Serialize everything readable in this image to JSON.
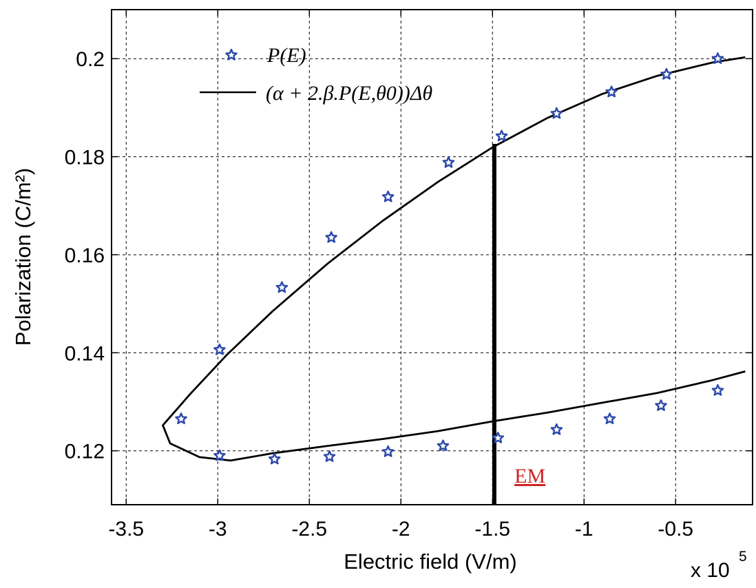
{
  "chart_data": {
    "type": "scatter",
    "xlabel": "Electric field (V/m)",
    "ylabel": "Polarization (C/m²)",
    "x_multiplier_label": "x 10",
    "x_multiplier_exponent": "5",
    "xlim": [
      -3.58,
      -0.08
    ],
    "ylim": [
      0.109,
      0.21
    ],
    "x_ticks": [
      -3.5,
      -3,
      -2.5,
      -2,
      -1.5,
      -1,
      -0.5
    ],
    "x_tick_labels": [
      "-3.5",
      "-3",
      "-2.5",
      "-2",
      "-1.5",
      "-1",
      "-0.5"
    ],
    "y_ticks": [
      0.12,
      0.14,
      0.16,
      0.18,
      0.2
    ],
    "y_tick_labels": [
      "0.12",
      "0.14",
      "0.16",
      "0.18",
      "0.2"
    ],
    "grid": true,
    "legend_position": "top-left",
    "series": [
      {
        "name": "P(E)",
        "style": "markers",
        "marker": "star",
        "color": "#2b48a8",
        "points": [
          [
            -0.27,
            0.2
          ],
          [
            -0.55,
            0.1968
          ],
          [
            -0.85,
            0.1932
          ],
          [
            -1.15,
            0.1888
          ],
          [
            -1.45,
            0.1842
          ],
          [
            -1.74,
            0.1788
          ],
          [
            -2.07,
            0.1718
          ],
          [
            -2.38,
            0.1635
          ],
          [
            -2.65,
            0.1533
          ],
          [
            -2.99,
            0.1406
          ],
          [
            -3.2,
            0.1265
          ],
          [
            -2.99,
            0.119
          ],
          [
            -2.69,
            0.1183
          ],
          [
            -2.39,
            0.1188
          ],
          [
            -2.07,
            0.1198
          ],
          [
            -1.77,
            0.121
          ],
          [
            -1.47,
            0.1226
          ],
          [
            -1.15,
            0.1243
          ],
          [
            -0.86,
            0.1265
          ],
          [
            -0.58,
            0.1292
          ],
          [
            -0.27,
            0.1323
          ]
        ]
      },
      {
        "name": "(α+2.β.P(E,θ0))Δθ",
        "style": "line",
        "color": "#000000",
        "points": [
          [
            -0.12,
            0.2003
          ],
          [
            -0.3,
            0.1992
          ],
          [
            -0.6,
            0.1965
          ],
          [
            -0.9,
            0.1928
          ],
          [
            -1.2,
            0.1879
          ],
          [
            -1.5,
            0.1819
          ],
          [
            -1.8,
            0.1748
          ],
          [
            -2.1,
            0.1669
          ],
          [
            -2.4,
            0.1582
          ],
          [
            -2.7,
            0.1485
          ],
          [
            -2.95,
            0.1396
          ],
          [
            -3.15,
            0.1316
          ],
          [
            -3.3,
            0.1252
          ],
          [
            -3.26,
            0.1215
          ],
          [
            -3.1,
            0.1187
          ],
          [
            -2.93,
            0.118
          ],
          [
            -2.7,
            0.1195
          ],
          [
            -2.4,
            0.121
          ],
          [
            -2.1,
            0.1224
          ],
          [
            -1.8,
            0.124
          ],
          [
            -1.5,
            0.126
          ],
          [
            -1.2,
            0.1278
          ],
          [
            -0.9,
            0.1298
          ],
          [
            -0.6,
            0.1318
          ],
          [
            -0.3,
            0.1344
          ],
          [
            -0.12,
            0.1362
          ]
        ]
      }
    ],
    "legend": [
      {
        "label": "P(E)",
        "type": "marker",
        "series": 0
      },
      {
        "label": "(α + 2.β.P(E,θ0))Δθ",
        "type": "line",
        "series": 1
      }
    ],
    "annotations": [
      {
        "type": "vline",
        "x": -1.49,
        "y_from": 0.109,
        "y_to": 0.1826,
        "color": "#000000"
      },
      {
        "type": "text",
        "text": "EM",
        "x": -1.38,
        "y": 0.1135,
        "color": "#d02020"
      }
    ]
  }
}
